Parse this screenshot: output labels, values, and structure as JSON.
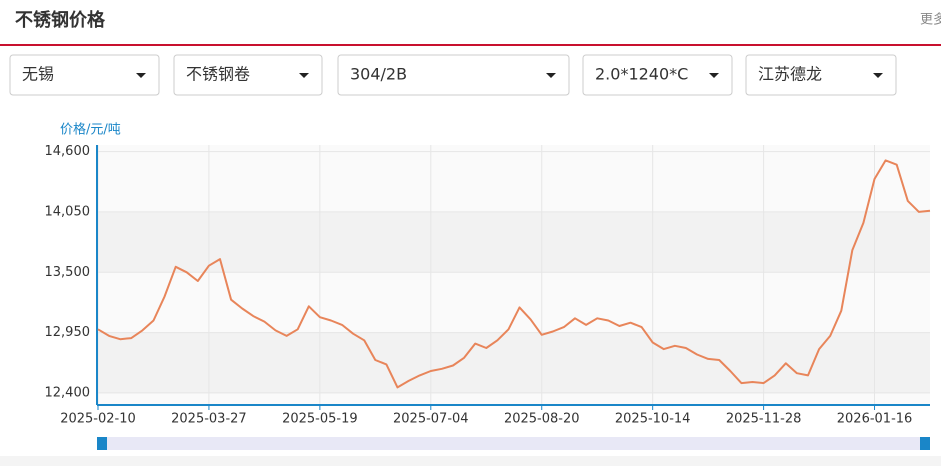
{
  "header": {
    "title": "不锈钢价格",
    "more": "更多"
  },
  "filters": [
    "无锡",
    "不锈钢卷",
    "304/2B",
    "2.0*1240*C",
    "江苏德龙"
  ],
  "chart_data": {
    "type": "line",
    "y_label": "价格/元/吨",
    "color": "#e8855a",
    "grid": true,
    "categories": [
      "2025-02-10",
      null,
      null,
      null,
      null,
      null,
      null,
      null,
      null,
      null,
      "2025-03-27",
      null,
      null,
      null,
      null,
      null,
      null,
      null,
      null,
      null,
      "2025-05-19",
      null,
      null,
      null,
      null,
      null,
      null,
      null,
      null,
      null,
      "2025-07-04",
      null,
      null,
      null,
      null,
      null,
      null,
      null,
      null,
      null,
      "2025-08-20",
      null,
      null,
      null,
      null,
      null,
      null,
      null,
      null,
      null,
      "2025-10-14",
      null,
      null,
      null,
      null,
      null,
      null,
      null,
      null,
      null,
      "2025-11-28",
      null,
      null,
      null,
      null,
      null,
      null,
      null,
      null,
      null,
      "2026-01-16",
      null,
      null,
      null,
      null,
      null
    ],
    "values": [
      12980,
      12920,
      12890,
      12900,
      12970,
      13060,
      13280,
      13550,
      13500,
      13420,
      13560,
      13620,
      13250,
      13170,
      13100,
      13050,
      12970,
      12920,
      12980,
      13190,
      13090,
      13060,
      13020,
      12940,
      12880,
      12700,
      12660,
      12450,
      12510,
      12560,
      12600,
      12620,
      12650,
      12720,
      12850,
      12810,
      12880,
      12980,
      13180,
      13070,
      12930,
      12960,
      13000,
      13080,
      13020,
      13080,
      13060,
      13010,
      13040,
      13000,
      12860,
      12800,
      12830,
      12810,
      12750,
      12710,
      12700,
      12600,
      12490,
      12500,
      12490,
      12560,
      12670,
      12580,
      12560,
      12800,
      12920,
      13150,
      13700,
      13950,
      14350,
      14520,
      14480,
      14150,
      14050,
      14060
    ],
    "ylim": [
      12290,
      14660
    ],
    "yticks": [
      {
        "value": 12400,
        "label": "12,400"
      },
      {
        "value": 12950,
        "label": "12,950"
      },
      {
        "value": 13500,
        "label": "13,500"
      },
      {
        "value": 14050,
        "label": "14,050"
      },
      {
        "value": 14600,
        "label": "14,600"
      }
    ]
  }
}
